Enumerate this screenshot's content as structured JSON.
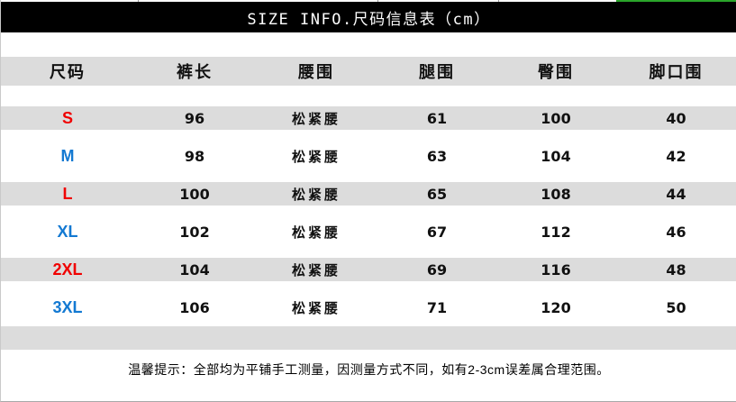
{
  "title": "SIZE INFO.尺码信息表（cm）",
  "note": "温馨提示：全部均为平铺手工测量，因测量方式不同，如有2-3cm误差属合理范围。",
  "chart_data": {
    "type": "table",
    "title": "SIZE INFO.尺码信息表（cm）",
    "unit": "cm",
    "columns": [
      "尺码",
      "裤长",
      "腰围",
      "腿围",
      "臀围",
      "脚口围"
    ],
    "rows": [
      [
        "S",
        "96",
        "松紧腰",
        "61",
        "100",
        "40"
      ],
      [
        "M",
        "98",
        "松紧腰",
        "63",
        "104",
        "42"
      ],
      [
        "L",
        "100",
        "松紧腰",
        "65",
        "108",
        "44"
      ],
      [
        "XL",
        "102",
        "松紧腰",
        "67",
        "112",
        "46"
      ],
      [
        "2XL",
        "104",
        "松紧腰",
        "69",
        "116",
        "48"
      ],
      [
        "3XL",
        "106",
        "松紧腰",
        "71",
        "120",
        "50"
      ]
    ],
    "note": "温馨提示：全部均为平铺手工测量，因测量方式不同，如有2-3cm误差属合理范围。"
  },
  "style": {
    "colors": {
      "red": "#f00000",
      "blue": "#1379d2",
      "stripe": "#dcdcdc",
      "title_bg": "#000000",
      "title_fg": "#ffffff",
      "green_edge": "#2aa52a"
    },
    "row_label_colors": [
      "red",
      "blue",
      "red",
      "blue",
      "red",
      "blue"
    ],
    "striped_row_indexes": [
      0,
      2,
      4
    ]
  }
}
